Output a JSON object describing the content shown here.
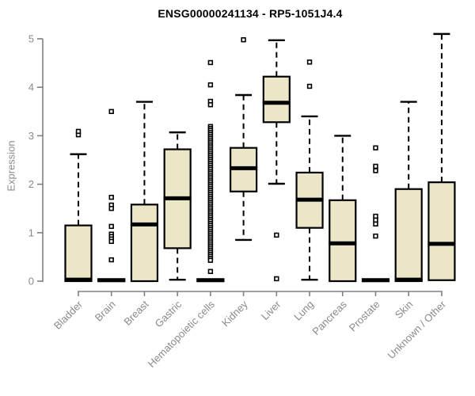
{
  "colors": {
    "background": "#ffffff",
    "box_fill": "#ECE6C8",
    "box_stroke": "#000000",
    "median": "#000000",
    "whisker": "#000000",
    "outlier_stroke": "#000000",
    "axis": "#808080",
    "tick_label": "#8a8a8a",
    "title": "#000000"
  },
  "chart_data": {
    "type": "boxplot",
    "title": "ENSG00000241134 - RP5-1051J4.4",
    "xlabel": "",
    "ylabel": "Expression",
    "ylim": [
      0,
      5
    ],
    "yticks": [
      "0",
      "1",
      "2",
      "3",
      "4",
      "5"
    ],
    "grid": false,
    "legend": "none",
    "categories": [
      "Bladder",
      "Brain",
      "Breast",
      "Gastric",
      "Hematopoietic cells",
      "Kidney",
      "Liver",
      "Lung",
      "Pancreas",
      "Prostate",
      "Skin",
      "Unknown / Other"
    ],
    "boxes": [
      {
        "name": "Bladder",
        "q1": 0,
        "median": 0.03,
        "q3": 1.15,
        "whisker_low": 0,
        "whisker_high": 2.62,
        "outliers": [
          3.02,
          3.09
        ]
      },
      {
        "name": "Brain",
        "q1": 0,
        "median": 0.02,
        "q3": 0.04,
        "whisker_low": 0,
        "whisker_high": 0.04,
        "outliers": [
          3.5,
          1.73,
          1.57,
          1.5,
          1.13,
          0.97,
          0.92,
          0.87,
          0.82,
          0.44
        ]
      },
      {
        "name": "Breast",
        "q1": 0,
        "median": 1.17,
        "q3": 1.58,
        "whisker_low": 0,
        "whisker_high": 3.7,
        "outliers": []
      },
      {
        "name": "Gastric",
        "q1": 0.68,
        "median": 1.71,
        "q3": 2.72,
        "whisker_low": 0.03,
        "whisker_high": 3.07,
        "outliers": []
      },
      {
        "name": "Hematopoietic cells",
        "q1": 0,
        "median": 0.02,
        "q3": 0.04,
        "whisker_low": 0,
        "whisker_high": 0.04,
        "outliers": [
          4.51,
          4.05,
          3.71,
          3.64,
          3.19,
          3.15,
          3.11,
          3.07,
          3.03,
          2.99,
          2.95,
          2.91,
          2.87,
          2.83,
          2.79,
          2.75,
          2.71,
          2.67,
          2.63,
          2.59,
          2.55,
          2.51,
          2.47,
          2.43,
          2.39,
          2.35,
          2.31,
          2.27,
          2.23,
          2.19,
          2.15,
          2.11,
          2.07,
          2.03,
          1.99,
          1.95,
          1.91,
          1.87,
          1.83,
          1.79,
          1.75,
          1.71,
          1.67,
          1.63,
          1.59,
          1.55,
          1.51,
          1.47,
          1.43,
          1.39,
          1.35,
          1.31,
          1.27,
          1.23,
          1.19,
          1.15,
          1.11,
          1.07,
          1.03,
          0.99,
          0.95,
          0.91,
          0.87,
          0.83,
          0.79,
          0.75,
          0.71,
          0.67,
          0.63,
          0.59,
          0.55,
          0.51,
          0.47,
          0.43,
          0.2
        ]
      },
      {
        "name": "Kidney",
        "q1": 1.85,
        "median": 2.33,
        "q3": 2.75,
        "whisker_low": 0.85,
        "whisker_high": 3.84,
        "outliers": [
          4.98
        ]
      },
      {
        "name": "Liver",
        "q1": 3.28,
        "median": 3.68,
        "q3": 4.22,
        "whisker_low": 2.01,
        "whisker_high": 4.97,
        "outliers": [
          0.95,
          0.05
        ]
      },
      {
        "name": "Lung",
        "q1": 1.1,
        "median": 1.68,
        "q3": 2.24,
        "whisker_low": 0.03,
        "whisker_high": 3.4,
        "outliers": [
          4.52,
          4.02
        ]
      },
      {
        "name": "Pancreas",
        "q1": 0,
        "median": 0.78,
        "q3": 1.67,
        "whisker_low": 0,
        "whisker_high": 3.0,
        "outliers": []
      },
      {
        "name": "Prostate",
        "q1": 0,
        "median": 0.02,
        "q3": 0.04,
        "whisker_low": 0,
        "whisker_high": 0.04,
        "outliers": [
          2.75,
          2.37,
          2.28,
          1.34,
          1.26,
          1.18,
          0.93
        ]
      },
      {
        "name": "Skin",
        "q1": 0,
        "median": 0.03,
        "q3": 1.9,
        "whisker_low": 0,
        "whisker_high": 3.7,
        "outliers": []
      },
      {
        "name": "Unknown / Other",
        "q1": 0.02,
        "median": 0.77,
        "q3": 2.04,
        "whisker_low": 0.02,
        "whisker_high": 5.1,
        "outliers": []
      }
    ]
  }
}
